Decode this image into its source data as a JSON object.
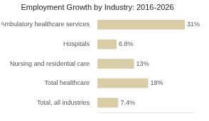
{
  "chart_data": {
    "type": "bar",
    "orientation": "horizontal",
    "title": "Employment Growth by Industry: 2016-2026",
    "categories": [
      "Total, all industries",
      "Total healthcare",
      "Nursing and residential care",
      "Hospitals",
      "Ambulatory healthcare services"
    ],
    "values": [
      7.4,
      18,
      13,
      6.8,
      31
    ],
    "value_labels": [
      "7.4%",
      "18%",
      "13%",
      "6.8%",
      "31%"
    ],
    "data_labels": true,
    "color": "#d9cda8",
    "xlim": [
      0,
      34
    ],
    "grid": false,
    "tick_labels": "y"
  }
}
